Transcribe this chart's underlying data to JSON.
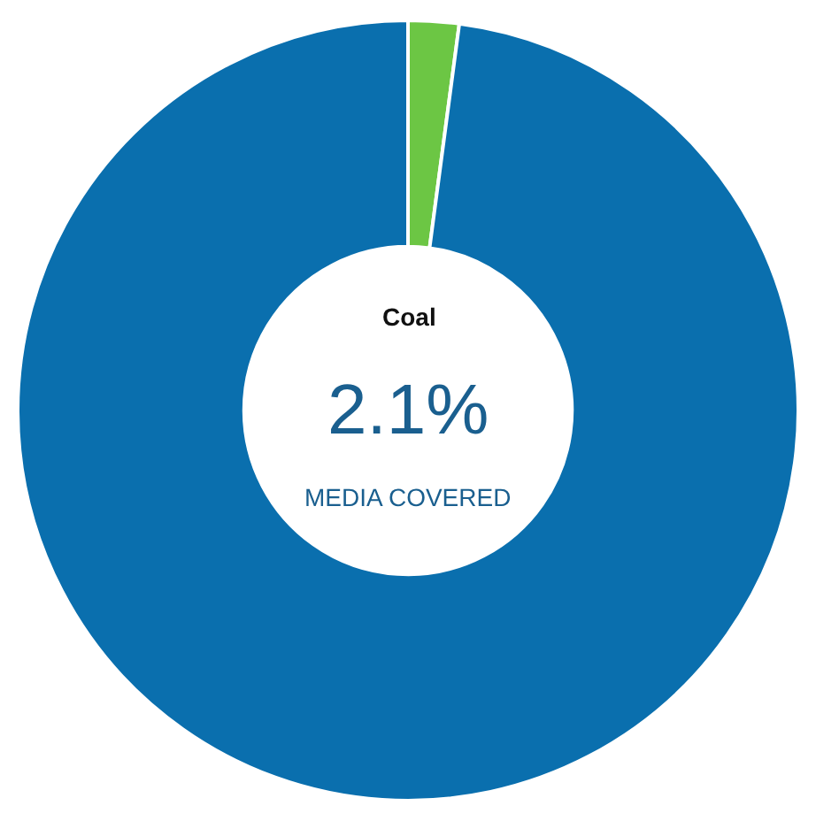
{
  "chart_data": {
    "type": "donut",
    "categories": [
      "Coal",
      null
    ],
    "values": [
      2.1,
      97.9
    ],
    "colors": [
      "#6cc644",
      "#0a6fae"
    ],
    "value_labels": [
      "2.1%",
      null
    ],
    "annotations": [
      "MEDIA COVERED"
    ],
    "legend": false
  }
}
